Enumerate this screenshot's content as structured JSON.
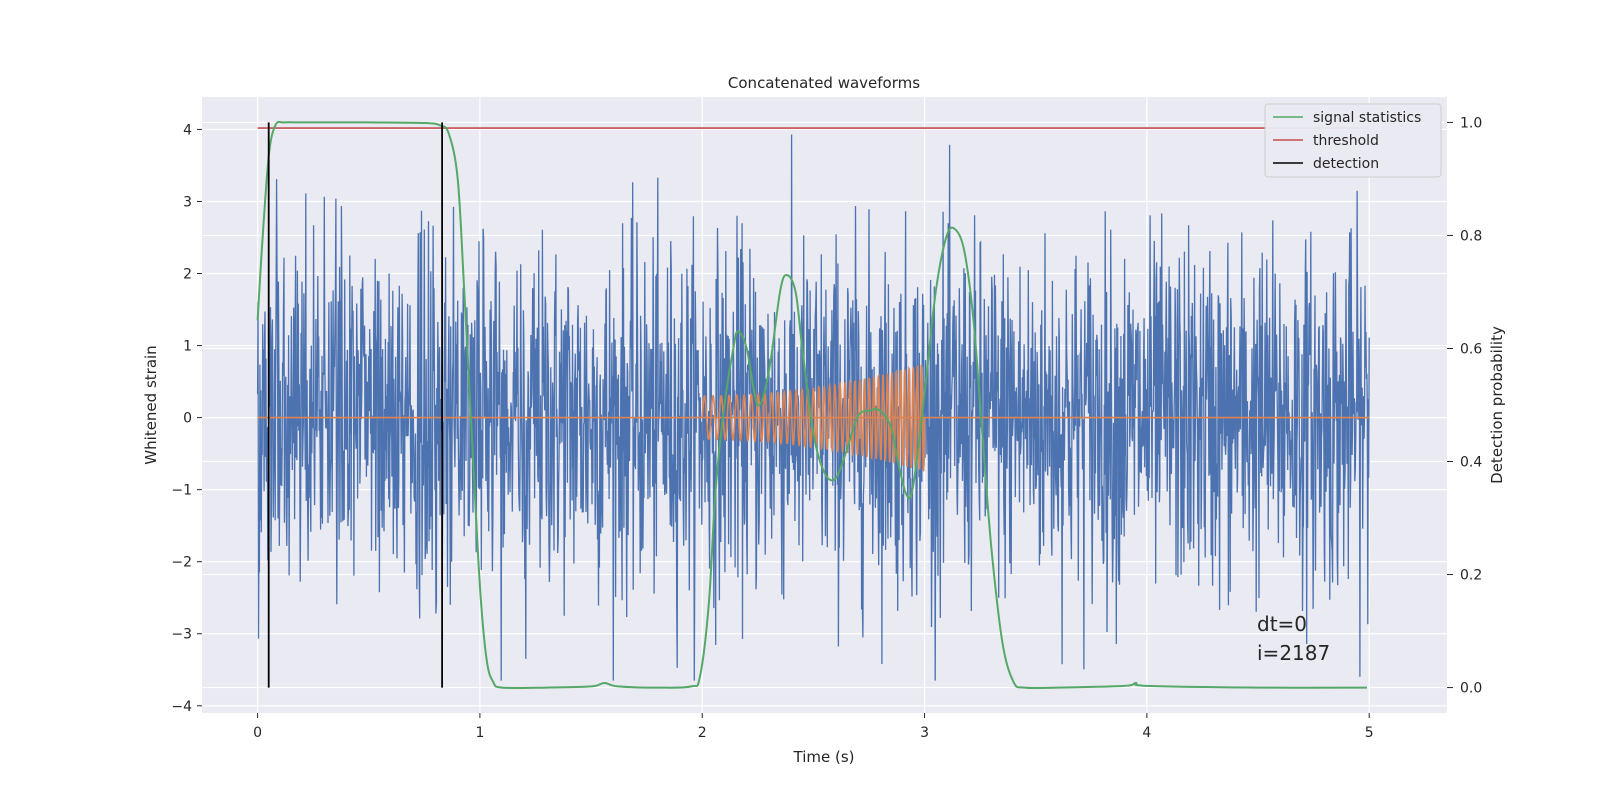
{
  "chart_data": {
    "type": "line",
    "title": "Concatenated waveforms",
    "xlabel": "Time (s)",
    "ylabel": "Whitened strain",
    "y2label": "Detection probability",
    "xlim": [
      -0.25,
      5.35
    ],
    "ylim": [
      -4.1,
      4.45
    ],
    "y2lim": [
      -0.045,
      1.045
    ],
    "xticks": [
      0,
      1,
      2,
      3,
      4,
      5
    ],
    "yticks": [
      -4,
      -3,
      -2,
      -1,
      0,
      1,
      2,
      3,
      4
    ],
    "y2ticks": [
      0.0,
      0.2,
      0.4,
      0.6,
      0.8,
      1.0
    ],
    "y2ticklabels": [
      "0.0",
      "0.2",
      "0.4",
      "0.6",
      "0.8",
      "1.0"
    ],
    "grid": true,
    "legend_position": "top-right",
    "colors": {
      "background": "#eaeaf2",
      "grid": "#ffffff",
      "strain": "#4c72b0",
      "template": "#dd8452",
      "signal_statistics": "#55a868",
      "threshold": "#c44e52",
      "detection": "#000000"
    },
    "legend": [
      "signal statistics",
      "threshold",
      "detection"
    ],
    "annotations": [
      "dt=0",
      "i=2187"
    ],
    "strain": {
      "description_axis": "left",
      "x_range": [
        0,
        5
      ],
      "typical_amplitude": 1.6,
      "max_value": 4.1,
      "min_value": -3.65
    },
    "template_waveform": {
      "axis": "left",
      "x_range": [
        2.0,
        3.0
      ],
      "baseline_x_range": [
        0,
        5
      ],
      "baseline_y": 0,
      "amplitude_start": 0.3,
      "amplitude_end": 0.75,
      "frequency_start_hz": 25,
      "frequency_end_hz": 55
    },
    "signal_statistics": {
      "axis": "right",
      "x": [
        0.0,
        0.02,
        0.05,
        0.08,
        0.12,
        0.2,
        0.5,
        0.75,
        0.82,
        0.86,
        0.9,
        0.93,
        0.97,
        1.0,
        1.03,
        1.06,
        1.1,
        1.3,
        1.5,
        1.56,
        1.62,
        1.8,
        1.95,
        1.99,
        2.03,
        2.06,
        2.1,
        2.14,
        2.16,
        2.2,
        2.25,
        2.3,
        2.35,
        2.38,
        2.42,
        2.45,
        2.5,
        2.55,
        2.6,
        2.65,
        2.7,
        2.75,
        2.8,
        2.85,
        2.88,
        2.92,
        2.95,
        3.0,
        3.05,
        3.1,
        3.14,
        3.18,
        3.22,
        3.26,
        3.3,
        3.35,
        3.4,
        3.45,
        3.6,
        3.9,
        3.95,
        4.0,
        4.5,
        4.99
      ],
      "y": [
        0.65,
        0.78,
        0.94,
        0.995,
        1.0,
        1.0,
        1.0,
        0.999,
        0.995,
        0.98,
        0.9,
        0.7,
        0.4,
        0.18,
        0.05,
        0.01,
        0.0,
        0.0,
        0.002,
        0.008,
        0.002,
        0.0,
        0.002,
        0.02,
        0.15,
        0.35,
        0.5,
        0.6,
        0.63,
        0.6,
        0.5,
        0.56,
        0.7,
        0.73,
        0.7,
        0.6,
        0.45,
        0.38,
        0.37,
        0.42,
        0.48,
        0.49,
        0.49,
        0.46,
        0.4,
        0.34,
        0.36,
        0.52,
        0.7,
        0.8,
        0.81,
        0.77,
        0.65,
        0.45,
        0.25,
        0.08,
        0.01,
        0.0,
        0.0,
        0.003,
        0.008,
        0.003,
        0.0,
        0.0
      ]
    },
    "threshold": {
      "axis": "right",
      "x_range": [
        0,
        5
      ],
      "value": 0.99
    },
    "detections": {
      "axis": "right",
      "x": [
        0.05,
        0.83
      ],
      "y_range": [
        0.0,
        1.0
      ]
    }
  }
}
